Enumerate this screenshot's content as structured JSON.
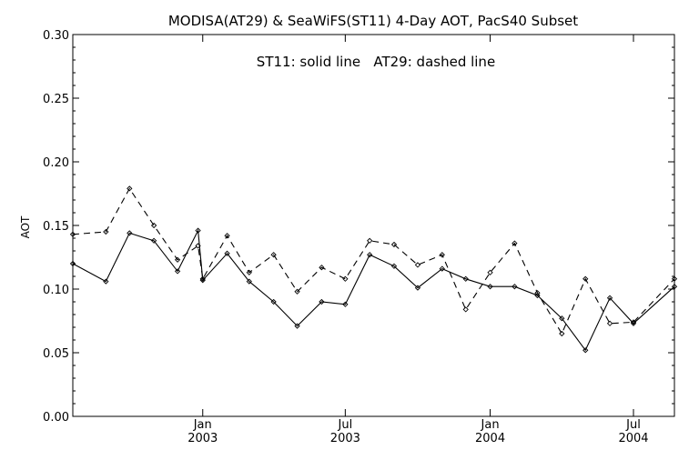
{
  "chart_data": {
    "type": "line",
    "title": "MODISA(AT29) & SeaWiFS(ST11) 4-Day AOT, PacS40 Subset",
    "annotation": "ST11: solid line   AT29: dashed line",
    "xlabel": "",
    "ylabel": "AOT",
    "xlim": [
      "2002-07-20",
      "2004-08-22"
    ],
    "ylim": [
      0.0,
      0.3
    ],
    "grid": false,
    "x_ticks": [
      {
        "date": "2003-01-01",
        "line1": "Jan",
        "line2": "2003"
      },
      {
        "date": "2003-07-01",
        "line1": "Jul",
        "line2": "2003"
      },
      {
        "date": "2004-01-01",
        "line1": "Jan",
        "line2": "2004"
      },
      {
        "date": "2004-07-01",
        "line1": "Jul",
        "line2": "2004"
      }
    ],
    "y_ticks": [
      "0.00",
      "0.05",
      "0.10",
      "0.15",
      "0.20",
      "0.25",
      "0.30"
    ],
    "series": [
      {
        "name": "ST11",
        "style": "solid",
        "color": "#000000",
        "points": [
          [
            "2002-07-20",
            0.12
          ],
          [
            "2002-08-31",
            0.106
          ],
          [
            "2002-09-30",
            0.144
          ],
          [
            "2002-10-31",
            0.138
          ],
          [
            "2002-11-30",
            0.114
          ],
          [
            "2002-12-26",
            0.146
          ],
          [
            "2003-01-01",
            0.107
          ],
          [
            "2003-02-01",
            0.128
          ],
          [
            "2003-03-01",
            0.106
          ],
          [
            "2003-04-01",
            0.09
          ],
          [
            "2003-05-01",
            0.071
          ],
          [
            "2003-06-01",
            0.09
          ],
          [
            "2003-07-01",
            0.088
          ],
          [
            "2003-08-01",
            0.127
          ],
          [
            "2003-09-01",
            0.118
          ],
          [
            "2003-10-01",
            0.101
          ],
          [
            "2003-11-01",
            0.116
          ],
          [
            "2003-12-01",
            0.108
          ],
          [
            "2004-01-01",
            0.102
          ],
          [
            "2004-02-01",
            0.102
          ],
          [
            "2004-03-01",
            0.095
          ],
          [
            "2004-04-01",
            0.077
          ],
          [
            "2004-05-01",
            0.052
          ],
          [
            "2004-06-01",
            0.093
          ],
          [
            "2004-07-01",
            0.073
          ],
          [
            "2004-08-22",
            0.102
          ]
        ]
      },
      {
        "name": "AT29",
        "style": "dashed",
        "color": "#000000",
        "points": [
          [
            "2002-07-20",
            0.143
          ],
          [
            "2002-08-31",
            0.145
          ],
          [
            "2002-09-30",
            0.179
          ],
          [
            "2002-10-31",
            0.15
          ],
          [
            "2002-11-30",
            0.123
          ],
          [
            "2002-12-26",
            0.134
          ],
          [
            "2003-01-01",
            0.108
          ],
          [
            "2003-02-01",
            0.142
          ],
          [
            "2003-03-01",
            0.113
          ],
          [
            "2003-04-01",
            0.127
          ],
          [
            "2003-05-01",
            0.098
          ],
          [
            "2003-06-01",
            0.117
          ],
          [
            "2003-07-01",
            0.108
          ],
          [
            "2003-08-01",
            0.138
          ],
          [
            "2003-09-01",
            0.135
          ],
          [
            "2003-10-01",
            0.119
          ],
          [
            "2003-11-01",
            0.127
          ],
          [
            "2003-12-01",
            0.084
          ],
          [
            "2004-01-01",
            0.113
          ],
          [
            "2004-02-01",
            0.136
          ],
          [
            "2004-03-01",
            0.097
          ],
          [
            "2004-04-01",
            0.065
          ],
          [
            "2004-05-01",
            0.108
          ],
          [
            "2004-06-01",
            0.073
          ],
          [
            "2004-07-01",
            0.074
          ],
          [
            "2004-08-22",
            0.108
          ]
        ]
      }
    ]
  }
}
